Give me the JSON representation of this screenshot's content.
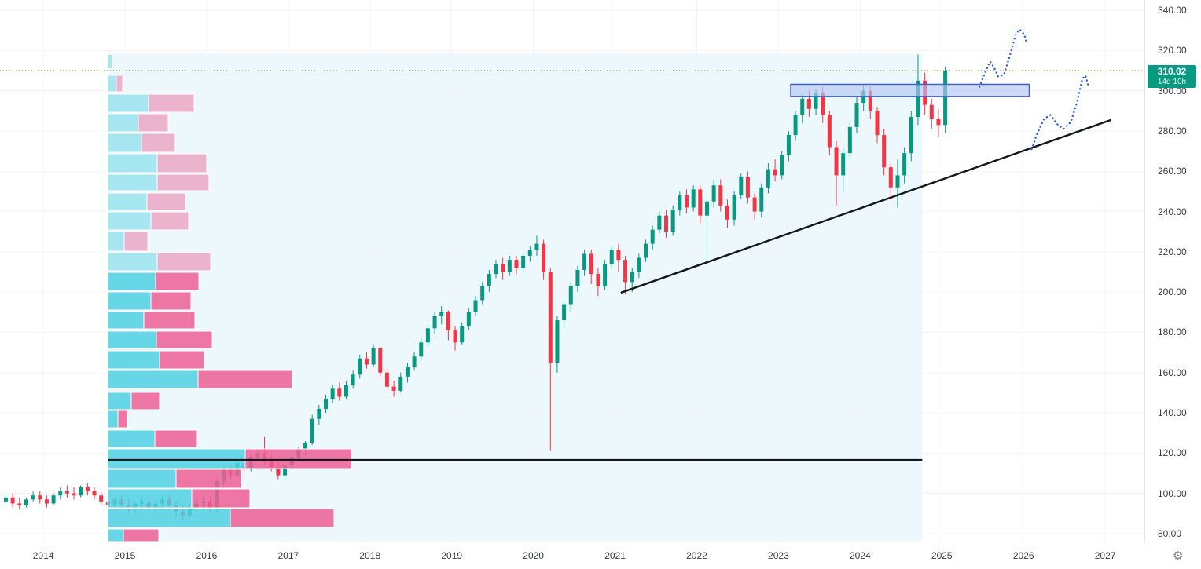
{
  "meta": {
    "last_price": "310.02",
    "countdown": "14d 10h"
  },
  "colors": {
    "up": "#089981",
    "down": "#f23645",
    "range_bg": "#edf8fc",
    "grid": "#f2f4f7",
    "axis_text": "#363a45",
    "separator": "#e0e3eb",
    "badge_bg": "#089981",
    "profile_buy": "#4fd0e2",
    "profile_sell": "#ec5f95",
    "box_fill": "#b3c6f4",
    "box_border": "#3e63cc",
    "drawing_black": "#14171c",
    "zigzag_blue": "#2b5fe3",
    "price_line": "#9ba13a"
  },
  "axes": {
    "price_ticks": [
      "340.00",
      "320.00",
      "300.00",
      "280.00",
      "260.00",
      "240.00",
      "220.00",
      "200.00",
      "180.00",
      "160.00",
      "140.00",
      "120.00",
      "100.00",
      "80.00"
    ],
    "years": [
      "2014",
      "2015",
      "2016",
      "2017",
      "2018",
      "2019",
      "2020",
      "2021",
      "2022",
      "2023",
      "2024",
      "2025",
      "2026",
      "2027"
    ]
  },
  "chart_data": {
    "type": "candlestick",
    "timeframe": "1M",
    "visible_price_range": [
      75.3,
      345.1
    ],
    "visible_time_range": [
      2013.47,
      2027.48
    ],
    "grid": true,
    "candles": [
      [
        "2013-07",
        96,
        100,
        94,
        98
      ],
      [
        "2013-08",
        98,
        100,
        93,
        95
      ],
      [
        "2013-09",
        95,
        98,
        92,
        94
      ],
      [
        "2013-10",
        94,
        98,
        93,
        97
      ],
      [
        "2013-11",
        97,
        101,
        96,
        99
      ],
      [
        "2013-12",
        99,
        101,
        95,
        97
      ],
      [
        "2014-01",
        97,
        99,
        93,
        95
      ],
      [
        "2014-02",
        95,
        100,
        94,
        99
      ],
      [
        "2014-03",
        99,
        103,
        97,
        101
      ],
      [
        "2014-04",
        101,
        104,
        98,
        100
      ],
      [
        "2014-05",
        100,
        103,
        97,
        99
      ],
      [
        "2014-06",
        99,
        104,
        98,
        103
      ],
      [
        "2014-07",
        103,
        105,
        99,
        101
      ],
      [
        "2014-08",
        101,
        103,
        97,
        99
      ],
      [
        "2014-09",
        99,
        101,
        94,
        96
      ],
      [
        "2014-10",
        96,
        99,
        92,
        94
      ],
      [
        "2014-11",
        94,
        98,
        93,
        97
      ],
      [
        "2014-12",
        97,
        99,
        92,
        94
      ],
      [
        "2015-01",
        94,
        97,
        90,
        92
      ],
      [
        "2015-02",
        92,
        96,
        90,
        95
      ],
      [
        "2015-03",
        95,
        98,
        92,
        96
      ],
      [
        "2015-04",
        96,
        98,
        91,
        93
      ],
      [
        "2015-05",
        93,
        97,
        91,
        95
      ],
      [
        "2015-06",
        95,
        99,
        93,
        97
      ],
      [
        "2015-07",
        97,
        99,
        92,
        94
      ],
      [
        "2015-08",
        94,
        96,
        88,
        91
      ],
      [
        "2015-09",
        91,
        94,
        87,
        89
      ],
      [
        "2015-10",
        89,
        95,
        88,
        93
      ],
      [
        "2015-11",
        93,
        97,
        91,
        95
      ],
      [
        "2015-12",
        95,
        98,
        93,
        96
      ],
      [
        "2016-01",
        96,
        98,
        90,
        93
      ],
      [
        "2016-02",
        93,
        107,
        90,
        106
      ],
      [
        "2016-03",
        106,
        113,
        104,
        112
      ],
      [
        "2016-04",
        112,
        114,
        107,
        109
      ],
      [
        "2016-05",
        109,
        116,
        108,
        115
      ],
      [
        "2016-06",
        115,
        117,
        110,
        112
      ],
      [
        "2016-07",
        112,
        119,
        111,
        118
      ],
      [
        "2016-08",
        118,
        122,
        116,
        120
      ],
      [
        "2016-09",
        120,
        128,
        114,
        116
      ],
      [
        "2016-10",
        116,
        119,
        111,
        113
      ],
      [
        "2016-11",
        113,
        115,
        107,
        109
      ],
      [
        "2016-12",
        109,
        116,
        106,
        114
      ],
      [
        "2017-01",
        114,
        119,
        112,
        118
      ],
      [
        "2017-02",
        118,
        123,
        116,
        122
      ],
      [
        "2017-03",
        122,
        126,
        119,
        125
      ],
      [
        "2017-04",
        125,
        139,
        124,
        137
      ],
      [
        "2017-05",
        137,
        144,
        134,
        142
      ],
      [
        "2017-06",
        142,
        149,
        140,
        147
      ],
      [
        "2017-07",
        147,
        154,
        145,
        152
      ],
      [
        "2017-08",
        152,
        155,
        146,
        148
      ],
      [
        "2017-09",
        148,
        156,
        147,
        154
      ],
      [
        "2017-10",
        154,
        161,
        152,
        159
      ],
      [
        "2017-11",
        159,
        169,
        157,
        167
      ],
      [
        "2017-12",
        167,
        170,
        162,
        164
      ],
      [
        "2018-01",
        164,
        174,
        163,
        172
      ],
      [
        "2018-02",
        172,
        173,
        158,
        160
      ],
      [
        "2018-03",
        160,
        163,
        151,
        153
      ],
      [
        "2018-04",
        153,
        156,
        148,
        151
      ],
      [
        "2018-05",
        151,
        160,
        150,
        158
      ],
      [
        "2018-06",
        158,
        165,
        155,
        163
      ],
      [
        "2018-07",
        163,
        170,
        161,
        168
      ],
      [
        "2018-08",
        168,
        177,
        166,
        175
      ],
      [
        "2018-09",
        175,
        184,
        173,
        182
      ],
      [
        "2018-10",
        182,
        190,
        179,
        188
      ],
      [
        "2018-11",
        188,
        193,
        184,
        190
      ],
      [
        "2018-12",
        190,
        191,
        176,
        181
      ],
      [
        "2019-01",
        181,
        183,
        171,
        175
      ],
      [
        "2019-02",
        175,
        185,
        174,
        183
      ],
      [
        "2019-03",
        183,
        192,
        181,
        190
      ],
      [
        "2019-04",
        190,
        198,
        188,
        196
      ],
      [
        "2019-05",
        196,
        205,
        194,
        203
      ],
      [
        "2019-06",
        203,
        211,
        200,
        209
      ],
      [
        "2019-07",
        209,
        216,
        207,
        214
      ],
      [
        "2019-08",
        214,
        217,
        206,
        210
      ],
      [
        "2019-09",
        210,
        218,
        208,
        216
      ],
      [
        "2019-10",
        216,
        218,
        209,
        212
      ],
      [
        "2019-11",
        212,
        220,
        210,
        218
      ],
      [
        "2019-12",
        218,
        223,
        215,
        221
      ],
      [
        "2020-01",
        221,
        228,
        218,
        224
      ],
      [
        "2020-02",
        224,
        226,
        206,
        210
      ],
      [
        "2020-03",
        210,
        212,
        121,
        165
      ],
      [
        "2020-04",
        165,
        188,
        160,
        186
      ],
      [
        "2020-05",
        186,
        196,
        182,
        194
      ],
      [
        "2020-06",
        194,
        205,
        190,
        203
      ],
      [
        "2020-07",
        203,
        213,
        200,
        211
      ],
      [
        "2020-08",
        211,
        221,
        208,
        219
      ],
      [
        "2020-09",
        219,
        221,
        204,
        209
      ],
      [
        "2020-10",
        209,
        212,
        198,
        203
      ],
      [
        "2020-11",
        203,
        216,
        201,
        214
      ],
      [
        "2020-12",
        214,
        223,
        212,
        221
      ],
      [
        "2021-01",
        221,
        224,
        210,
        216
      ],
      [
        "2021-02",
        216,
        218,
        199,
        205
      ],
      [
        "2021-03",
        205,
        212,
        200,
        210
      ],
      [
        "2021-04",
        210,
        219,
        207,
        217
      ],
      [
        "2021-05",
        217,
        226,
        215,
        224
      ],
      [
        "2021-06",
        224,
        233,
        221,
        231
      ],
      [
        "2021-07",
        231,
        240,
        229,
        238
      ],
      [
        "2021-08",
        238,
        241,
        227,
        230
      ],
      [
        "2021-09",
        230,
        243,
        228,
        241
      ],
      [
        "2021-10",
        241,
        250,
        238,
        248
      ],
      [
        "2021-11",
        248,
        251,
        239,
        242
      ],
      [
        "2021-12",
        242,
        253,
        240,
        251
      ],
      [
        "2022-01",
        251,
        253,
        234,
        238
      ],
      [
        "2022-02",
        238,
        248,
        216,
        245
      ],
      [
        "2022-03",
        245,
        256,
        242,
        253
      ],
      [
        "2022-04",
        253,
        256,
        240,
        243
      ],
      [
        "2022-05",
        243,
        246,
        232,
        236
      ],
      [
        "2022-06",
        236,
        250,
        233,
        248
      ],
      [
        "2022-07",
        248,
        259,
        246,
        257
      ],
      [
        "2022-08",
        257,
        260,
        244,
        247
      ],
      [
        "2022-09",
        247,
        249,
        236,
        240
      ],
      [
        "2022-10",
        240,
        254,
        237,
        252
      ],
      [
        "2022-11",
        252,
        264,
        249,
        261
      ],
      [
        "2022-12",
        261,
        266,
        255,
        258
      ],
      [
        "2023-01",
        258,
        270,
        256,
        268
      ],
      [
        "2023-02",
        268,
        280,
        265,
        278
      ],
      [
        "2023-03",
        278,
        290,
        275,
        288
      ],
      [
        "2023-04",
        288,
        298,
        284,
        296
      ],
      [
        "2023-05",
        296,
        300,
        287,
        291
      ],
      [
        "2023-06",
        291,
        301,
        288,
        299
      ],
      [
        "2023-07",
        299,
        302,
        284,
        288
      ],
      [
        "2023-08",
        288,
        290,
        268,
        272
      ],
      [
        "2023-09",
        272,
        275,
        243,
        258
      ],
      [
        "2023-10",
        258,
        272,
        250,
        269
      ],
      [
        "2023-11",
        269,
        284,
        266,
        282
      ],
      [
        "2023-12",
        282,
        297,
        279,
        294
      ],
      [
        "2024-01",
        294,
        303,
        290,
        300
      ],
      [
        "2024-02",
        300,
        302,
        286,
        290
      ],
      [
        "2024-03",
        290,
        292,
        274,
        278
      ],
      [
        "2024-04",
        278,
        281,
        258,
        262
      ],
      [
        "2024-05",
        262,
        264,
        246,
        252
      ],
      [
        "2024-06",
        252,
        266,
        242,
        258
      ],
      [
        "2024-07",
        258,
        272,
        254,
        269
      ],
      [
        "2024-08",
        269,
        290,
        265,
        287
      ],
      [
        "2024-09",
        287,
        318,
        283,
        305
      ],
      [
        "2024-10",
        305,
        309,
        288,
        293
      ],
      [
        "2024-11",
        293,
        296,
        281,
        286
      ],
      [
        "2024-12",
        286,
        291,
        277,
        283
      ],
      [
        "2025-01",
        283,
        312,
        279,
        310.02
      ]
    ],
    "volume_profile": {
      "time_range": [
        2014.79,
        2024.76
      ],
      "price_top": 318.5,
      "rows": [
        [
          318.0,
          311.0,
          6,
          0,
          "l"
        ],
        [
          307.6,
          299.5,
          11,
          8,
          "l"
        ],
        [
          298.3,
          289.3,
          52,
          58,
          "l"
        ],
        [
          288.5,
          279.6,
          39,
          38,
          "l"
        ],
        [
          278.8,
          269.4,
          43,
          43,
          "l"
        ],
        [
          268.7,
          259.3,
          63,
          63,
          "l"
        ],
        [
          258.5,
          250.3,
          63,
          66,
          "l"
        ],
        [
          249.2,
          240.6,
          50,
          49,
          "l"
        ],
        [
          239.8,
          230.9,
          55,
          48,
          "l"
        ],
        [
          230.1,
          220.3,
          21,
          30,
          "l"
        ],
        [
          219.5,
          210.6,
          63,
          68,
          "l"
        ],
        [
          209.8,
          200.9,
          61,
          55,
          "s"
        ],
        [
          200.1,
          191.1,
          55,
          51,
          "s"
        ],
        [
          190.3,
          181.7,
          46,
          65,
          "s"
        ],
        [
          180.6,
          172.0,
          62,
          71,
          "s"
        ],
        [
          170.8,
          161.9,
          66,
          57,
          "s"
        ],
        [
          161.1,
          152.1,
          115,
          120,
          "s"
        ],
        [
          150.2,
          141.6,
          30,
          36,
          "s"
        ],
        [
          141.2,
          132.6,
          13,
          12,
          "s"
        ],
        [
          131.5,
          122.9,
          60,
          54,
          "s"
        ],
        [
          122.1,
          112.4,
          175,
          135,
          "s"
        ],
        [
          112.0,
          102.6,
          87,
          83,
          "s"
        ],
        [
          102.2,
          92.9,
          107,
          74,
          "s"
        ],
        [
          92.5,
          83.1,
          156,
          132,
          "s"
        ],
        [
          82.3,
          76.1,
          20,
          45,
          "s"
        ]
      ]
    },
    "drawings": {
      "support_line": {
        "price": 116.6,
        "t1": 2014.79,
        "t2": 2024.76
      },
      "trendline": {
        "t1": 2021.07,
        "p1": 199.7,
        "t2": 2027.07,
        "p2": 285.5
      },
      "resistance_box": {
        "t1": 2023.15,
        "t2": 2026.07,
        "p_top": 303.2,
        "p_bot": 297.2
      },
      "price_line": {
        "price": 310.02
      },
      "projection_paths": [
        [
          [
            2025.46,
            302
          ],
          [
            2025.53,
            309
          ],
          [
            2025.59,
            314.5
          ],
          [
            2025.64,
            311.5
          ],
          [
            2025.69,
            307
          ],
          [
            2025.76,
            308
          ],
          [
            2025.83,
            317
          ],
          [
            2025.9,
            327.5
          ],
          [
            2025.95,
            330.5
          ],
          [
            2026.01,
            328
          ],
          [
            2026.04,
            323.5
          ]
        ],
        [
          [
            2026.1,
            271
          ],
          [
            2026.17,
            279
          ],
          [
            2026.25,
            286
          ],
          [
            2026.33,
            288
          ],
          [
            2026.41,
            283.5
          ],
          [
            2026.49,
            281
          ],
          [
            2026.58,
            284.5
          ],
          [
            2026.66,
            295
          ],
          [
            2026.72,
            306
          ],
          [
            2026.76,
            307.5
          ],
          [
            2026.79,
            303
          ]
        ]
      ]
    }
  }
}
